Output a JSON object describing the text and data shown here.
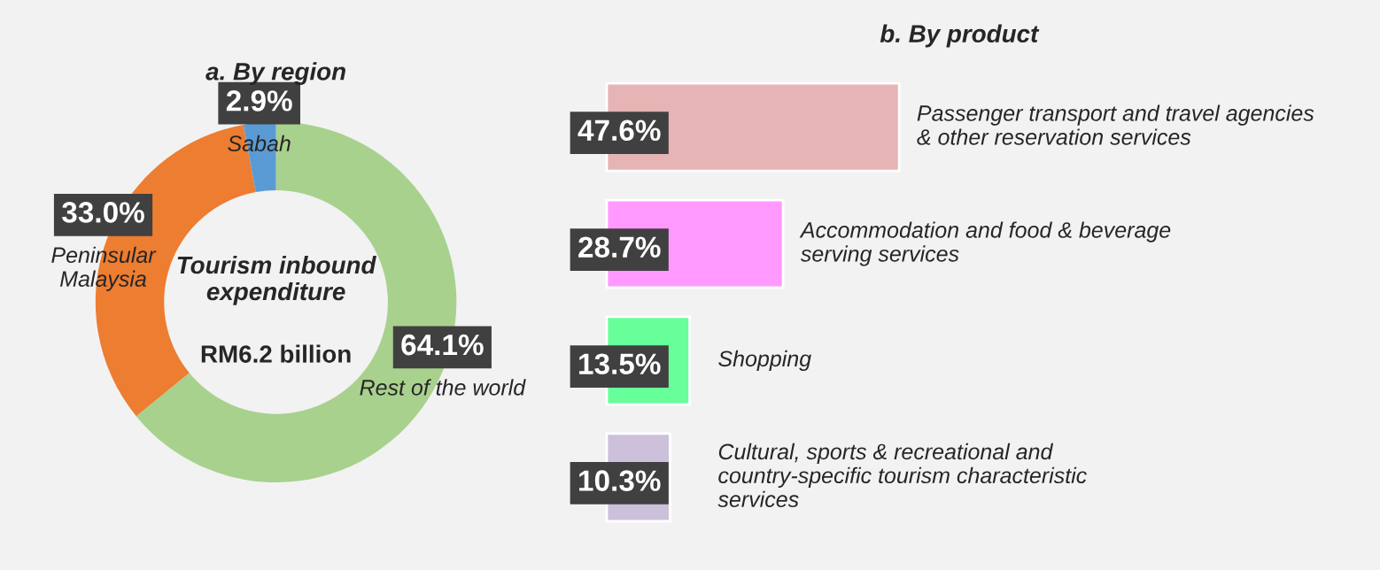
{
  "chart_data": [
    {
      "type": "donut",
      "title": "a. By region",
      "categories": [
        "Rest of the world",
        "Peninsular Malaysia",
        "Sabah"
      ],
      "values": [
        64.1,
        33.0,
        2.9
      ],
      "value_labels": [
        "64.1%",
        "33.0%",
        "2.9%"
      ],
      "colors": [
        "#a9d18e",
        "#ed7d31",
        "#5b9bd5"
      ],
      "annotations": [
        "Tourism inbound expenditure",
        "RM6.2 billion"
      ],
      "legend": false
    },
    {
      "type": "bar",
      "orientation": "horizontal",
      "tick_labels": false,
      "title": "b. By product",
      "categories": [
        "Passenger transport and travel agencies & other reservation services",
        "Accommodation and food & beverage serving services",
        "Shopping",
        "Cultural, sports & recreational and country-specific tourism characteristic services"
      ],
      "values": [
        47.6,
        28.7,
        13.5,
        10.3
      ],
      "value_labels": [
        "47.6%",
        "28.7%",
        "13.5%",
        "10.3%"
      ],
      "colors": [
        "#e6b4b4",
        "#ff99ff",
        "#66ff99",
        "#ccc0da"
      ],
      "legend": false
    }
  ]
}
